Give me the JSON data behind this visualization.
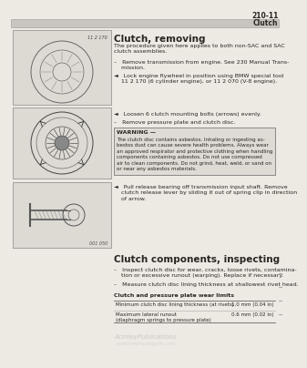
{
  "page_number": "210-11",
  "page_header": "Clutch",
  "section1_title": "Clutch, removing",
  "body_intro": "The procedure given here applies to both non-SAC and SAC\nclutch assemblies.",
  "bullet1": "–   Remove transmission from engine. See 230 Manual Trans-\n    mission.",
  "bullet2": "◄   Lock engine flywheel in position using BMW special tool\n    11 2 170 (6 cylinder engine), or 11 2 070 (V-8 engine).",
  "bullet3": "◄   Loosen 6 clutch mounting bolts (arrows) evenly.",
  "bullet4": "–   Remove pressure plate and clutch disc.",
  "warning_title": "WARNING —",
  "warning_body": "The clutch disc contains asbestos. Inhaling or ingesting as-\nbestos dust can cause severe health problems. Always wear\nan approved respirator and protective clothing when handling\ncomponents containing asbestos. Do not use compressed\nair to clean components. Do not grind, heat, weld, or sand on\nor near any asbestos materials.",
  "bullet5": "◄   Pull release bearing off transmission input shaft. Remove\n    clutch release lever by sliding it out of spring clip in direction\n    of arrow.",
  "section2_title": "Clutch components, inspecting",
  "s2_bullet1": "–   Inspect clutch disc for wear, cracks, loose rivets, contamina-\n    tion or excessive runout (warping). Replace if necessary.",
  "s2_bullet2": "–   Measure clutch disc lining thickness at shallowest rivet head.",
  "table_title": "Clutch and pressure plate wear limits",
  "table_row1_label": "Minimum clutch disc lining thickness (at rivets)",
  "table_row1_val": "1.0 mm (0.04 in)",
  "table_row2_label": "Maximum lateral runout\n(diaphragm springs to pressure plate)",
  "table_row2_val": "0.6 mm (0.02 in)",
  "watermark": "AcmleyPublications",
  "img1_label": "11 2 170",
  "img3_label": "001 050",
  "bg_color": "#ede9e3",
  "text_color": "#2a2520",
  "header_bar_color": "#c8c4be",
  "warn_box_color": "#dedad4"
}
